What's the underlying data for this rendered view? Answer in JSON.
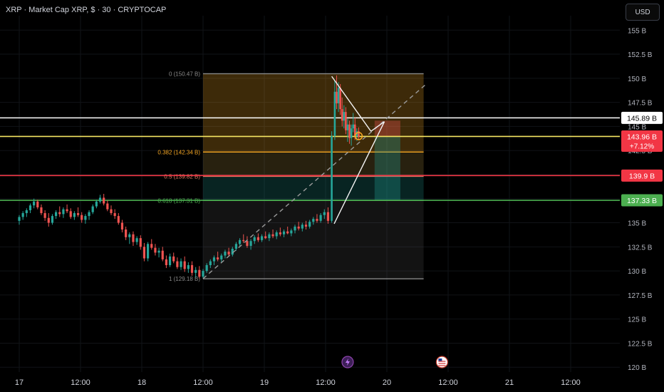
{
  "title": "XRP · Market Cap XRP, $ · 30 · CRYPTOCAP",
  "currency_button": "USD",
  "chart_data": {
    "type": "candlestick",
    "y_unit": "B USD",
    "ylim": [
      119.5,
      156.5
    ],
    "y_ticks": [
      "155 B",
      "152.5 B",
      "150 B",
      "147.5 B",
      "145 B",
      "142.5 B",
      "140 B",
      "137.5 B",
      "135 B",
      "132.5 B",
      "130 B",
      "127.5 B",
      "125 B",
      "122.5 B",
      "120 B"
    ],
    "y_tick_values": [
      155,
      152.5,
      150,
      147.5,
      145,
      142.5,
      140,
      137.5,
      135,
      132.5,
      130,
      127.5,
      125,
      122.5,
      120
    ],
    "x_ticks": [
      "17",
      "12:00",
      "18",
      "12:00",
      "19",
      "12:00",
      "20",
      "12:00",
      "21",
      "12:00"
    ],
    "x_tick_values": [
      0,
      0.5,
      1,
      1.5,
      2,
      2.5,
      3,
      3.5,
      4,
      4.5
    ],
    "colors": {
      "up": "#26a69a",
      "down": "#ef5350",
      "white_line": "#ffffff",
      "yellow_line": "#f5e663",
      "red_line": "#f23645",
      "green_line": "#4caf50",
      "orange_line": "#f5a623"
    },
    "fib_levels": [
      {
        "label": "0 (150.47 B)",
        "value": 150.47,
        "color": "#8a8a8a"
      },
      {
        "label": "0.382 (142.34 B)",
        "value": 142.34,
        "color": "#f5a623"
      },
      {
        "label": "0.5 (139.82 B)",
        "value": 139.82,
        "color": "#e07a5f"
      },
      {
        "label": "0.618 (137.31 B)",
        "value": 137.31,
        "color": "#4caf50"
      },
      {
        "label": "1 (129.18 B)",
        "value": 129.18,
        "color": "#8a8a8a"
      }
    ],
    "fib_x_range": [
      1.5,
      3.3
    ],
    "horizontal_levels": [
      {
        "value": 145.89,
        "label": "145.89 B",
        "color": "#ffffff",
        "text_color": "#000000"
      },
      {
        "value": 143.96,
        "label": "143.96 B",
        "sublabel": "+7.12%",
        "color": "#f23645",
        "text_color": "#ffffff",
        "line_color": "#f5e663"
      },
      {
        "value": 139.9,
        "label": "139.9 B",
        "color": "#f23645",
        "text_color": "#ffffff"
      },
      {
        "value": 137.33,
        "label": "137.33 B",
        "color": "#4caf50",
        "text_color": "#ffffff"
      }
    ],
    "trend_lines": [
      {
        "from": [
          1.5,
          129.2
        ],
        "to": [
          3.33,
          149.5
        ],
        "style": "dashed"
      },
      {
        "from": [
          2.55,
          150.2
        ],
        "to": [
          2.87,
          144.5
        ],
        "style": "solid"
      },
      {
        "from": [
          2.57,
          134.9
        ],
        "to": [
          2.98,
          145.5
        ],
        "style": "solid"
      },
      {
        "from": [
          2.87,
          144.5
        ],
        "to": [
          2.98,
          145.5
        ],
        "style": "solid"
      }
    ],
    "position_box": {
      "x_range": [
        2.9,
        3.11
      ],
      "top": [
        145.6,
        143.96
      ],
      "bottom": [
        143.96,
        137.3
      ]
    },
    "candles": [
      [
        0.0,
        135.2,
        135.8,
        134.8,
        135.6
      ],
      [
        0.03,
        135.6,
        136.2,
        135.3,
        136.0
      ],
      [
        0.06,
        136.0,
        136.5,
        135.6,
        136.3
      ],
      [
        0.09,
        136.3,
        137.0,
        136.0,
        136.8
      ],
      [
        0.12,
        136.8,
        137.5,
        136.5,
        137.2
      ],
      [
        0.15,
        137.2,
        137.4,
        136.4,
        136.6
      ],
      [
        0.18,
        136.6,
        136.9,
        135.8,
        136.0
      ],
      [
        0.21,
        136.0,
        136.3,
        135.2,
        135.5
      ],
      [
        0.24,
        135.5,
        136.0,
        134.6,
        135.0
      ],
      [
        0.27,
        135.0,
        135.9,
        134.8,
        135.7
      ],
      [
        0.3,
        135.7,
        136.3,
        135.4,
        136.1
      ],
      [
        0.33,
        136.1,
        136.7,
        135.6,
        135.9
      ],
      [
        0.36,
        135.9,
        136.6,
        135.5,
        136.4
      ],
      [
        0.39,
        136.4,
        136.9,
        136.0,
        136.2
      ],
      [
        0.42,
        136.2,
        136.5,
        135.4,
        135.6
      ],
      [
        0.45,
        135.6,
        136.2,
        135.3,
        136.0
      ],
      [
        0.48,
        136.0,
        136.6,
        135.6,
        135.8
      ],
      [
        0.51,
        135.8,
        136.1,
        135.0,
        135.3
      ],
      [
        0.54,
        135.3,
        135.9,
        134.9,
        135.7
      ],
      [
        0.57,
        135.7,
        136.3,
        135.3,
        136.1
      ],
      [
        0.6,
        136.1,
        136.9,
        135.9,
        136.7
      ],
      [
        0.63,
        136.7,
        137.4,
        136.5,
        137.2
      ],
      [
        0.66,
        137.2,
        137.9,
        137.0,
        137.6
      ],
      [
        0.69,
        137.6,
        138.0,
        136.8,
        137.0
      ],
      [
        0.72,
        137.0,
        137.3,
        136.2,
        136.4
      ],
      [
        0.75,
        136.4,
        136.8,
        135.8,
        136.0
      ],
      [
        0.78,
        136.0,
        136.4,
        135.4,
        135.7
      ],
      [
        0.81,
        135.7,
        136.0,
        134.8,
        135.0
      ],
      [
        0.84,
        135.0,
        135.3,
        134.0,
        134.3
      ],
      [
        0.87,
        134.3,
        134.6,
        133.2,
        133.5
      ],
      [
        0.9,
        133.5,
        134.0,
        132.8,
        133.8
      ],
      [
        0.93,
        133.8,
        134.1,
        132.6,
        133.0
      ],
      [
        0.96,
        133.0,
        133.6,
        132.7,
        133.4
      ],
      [
        0.99,
        133.4,
        133.7,
        132.2,
        132.5
      ],
      [
        1.02,
        132.5,
        132.9,
        131.0,
        131.3
      ],
      [
        1.05,
        131.3,
        133.0,
        131.0,
        132.8
      ],
      [
        1.08,
        132.8,
        133.3,
        132.2,
        132.4
      ],
      [
        1.11,
        132.4,
        132.8,
        131.6,
        131.9
      ],
      [
        1.14,
        131.9,
        132.4,
        131.4,
        132.1
      ],
      [
        1.17,
        132.1,
        132.5,
        131.0,
        131.2
      ],
      [
        1.2,
        131.2,
        131.6,
        130.3,
        130.6
      ],
      [
        1.23,
        130.6,
        131.8,
        130.4,
        131.5
      ],
      [
        1.26,
        131.5,
        131.9,
        130.8,
        131.0
      ],
      [
        1.29,
        131.0,
        131.4,
        130.2,
        130.4
      ],
      [
        1.32,
        130.4,
        131.3,
        130.1,
        131.0
      ],
      [
        1.35,
        131.0,
        131.5,
        129.9,
        130.2
      ],
      [
        1.38,
        130.2,
        130.9,
        129.8,
        130.6
      ],
      [
        1.41,
        130.6,
        131.0,
        129.5,
        129.8
      ],
      [
        1.44,
        129.8,
        130.4,
        129.3,
        130.1
      ],
      [
        1.47,
        130.1,
        130.5,
        129.2,
        129.4
      ],
      [
        1.5,
        129.4,
        130.2,
        129.2,
        130.0
      ],
      [
        1.53,
        130.0,
        130.8,
        129.8,
        130.6
      ],
      [
        1.56,
        130.6,
        131.2,
        130.3,
        131.0
      ],
      [
        1.59,
        131.0,
        131.6,
        130.6,
        131.4
      ],
      [
        1.62,
        131.4,
        132.0,
        131.0,
        131.2
      ],
      [
        1.65,
        131.2,
        131.8,
        130.9,
        131.6
      ],
      [
        1.68,
        131.6,
        132.2,
        131.3,
        132.0
      ],
      [
        1.71,
        132.0,
        132.4,
        131.5,
        131.7
      ],
      [
        1.74,
        131.7,
        132.5,
        131.5,
        132.3
      ],
      [
        1.77,
        132.3,
        133.0,
        132.1,
        132.8
      ],
      [
        1.8,
        132.8,
        133.4,
        132.6,
        133.2
      ],
      [
        1.83,
        133.2,
        133.8,
        132.9,
        133.1
      ],
      [
        1.86,
        133.1,
        133.6,
        132.4,
        132.6
      ],
      [
        1.89,
        132.6,
        133.3,
        132.2,
        133.1
      ],
      [
        1.92,
        133.1,
        133.7,
        132.8,
        133.5
      ],
      [
        1.95,
        133.5,
        133.9,
        133.0,
        133.2
      ],
      [
        1.98,
        133.2,
        133.8,
        133.0,
        133.6
      ],
      [
        2.01,
        133.6,
        134.1,
        133.3,
        133.4
      ],
      [
        2.04,
        133.4,
        134.0,
        133.1,
        133.8
      ],
      [
        2.07,
        133.8,
        134.3,
        133.4,
        133.6
      ],
      [
        2.1,
        133.6,
        134.2,
        133.3,
        134.0
      ],
      [
        2.13,
        134.0,
        134.5,
        133.6,
        133.8
      ],
      [
        2.16,
        133.8,
        134.3,
        133.5,
        134.1
      ],
      [
        2.19,
        134.1,
        134.6,
        133.8,
        133.9
      ],
      [
        2.22,
        133.9,
        134.4,
        133.6,
        134.2
      ],
      [
        2.25,
        134.2,
        134.8,
        133.9,
        134.6
      ],
      [
        2.28,
        134.6,
        135.1,
        134.2,
        134.4
      ],
      [
        2.31,
        134.4,
        135.0,
        134.1,
        134.8
      ],
      [
        2.34,
        134.8,
        135.2,
        134.3,
        134.6
      ],
      [
        2.37,
        134.6,
        135.3,
        134.4,
        135.1
      ],
      [
        2.4,
        135.1,
        135.6,
        134.8,
        135.4
      ],
      [
        2.43,
        135.4,
        135.9,
        135.0,
        135.2
      ],
      [
        2.46,
        135.2,
        136.0,
        135.0,
        135.8
      ],
      [
        2.49,
        135.8,
        136.4,
        135.4,
        136.1
      ],
      [
        2.52,
        136.1,
        136.6,
        134.9,
        135.2
      ],
      [
        2.55,
        135.2,
        144.5,
        135.0,
        144.0
      ],
      [
        2.575,
        144.0,
        149.8,
        143.6,
        148.6
      ],
      [
        2.59,
        148.6,
        150.3,
        146.8,
        147.4
      ],
      [
        2.605,
        147.4,
        149.6,
        146.5,
        149.0
      ],
      [
        2.62,
        149.0,
        149.4,
        146.2,
        146.8
      ],
      [
        2.635,
        146.8,
        148.0,
        145.0,
        145.6
      ],
      [
        2.65,
        145.6,
        147.2,
        144.8,
        146.5
      ],
      [
        2.665,
        146.5,
        147.0,
        144.2,
        144.6
      ],
      [
        2.68,
        144.6,
        145.8,
        143.4,
        145.2
      ],
      [
        2.695,
        145.2,
        145.6,
        143.2,
        143.8
      ],
      [
        2.71,
        143.8,
        145.2,
        143.0,
        144.8
      ],
      [
        2.725,
        144.8,
        146.4,
        144.4,
        145.2
      ],
      [
        2.74,
        145.2,
        145.9,
        143.6,
        144.0
      ],
      [
        2.755,
        144.0,
        144.8,
        143.5,
        144.5
      ],
      [
        2.77,
        144.5,
        144.9,
        143.6,
        143.9
      ]
    ]
  }
}
